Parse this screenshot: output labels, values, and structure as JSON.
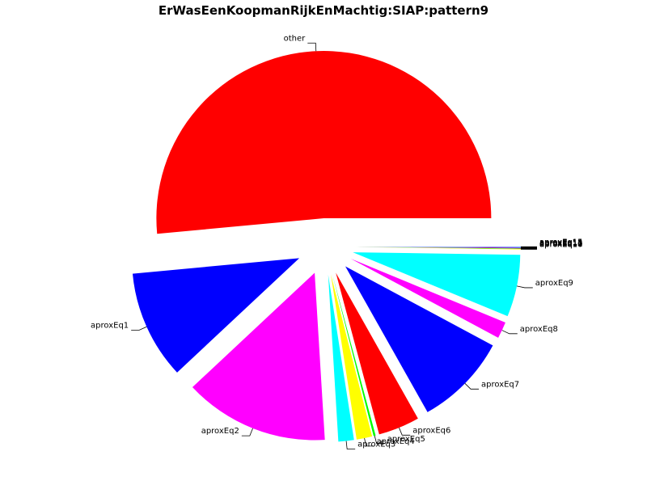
{
  "chart_data": {
    "type": "pie",
    "title": "ErWasEenKoopmanRijkEnMachtig:SIAP:pattern9",
    "start_angle_deg": 0,
    "direction": "counterclockwise",
    "exploded": true,
    "slices": [
      {
        "label": "other",
        "value": 51.5,
        "color": "#ff0000"
      },
      {
        "label": "aproxEq1",
        "value": 10.5,
        "color": "#0000ff"
      },
      {
        "label": "aproxEq2",
        "value": 14.0,
        "color": "#ff00ff"
      },
      {
        "label": "aproxEq3",
        "value": 1.5,
        "color": "#00ffff"
      },
      {
        "label": "aproxEq4",
        "value": 1.5,
        "color": "#ffff00"
      },
      {
        "label": "aproxEq5",
        "value": 0.2,
        "color": "#00ff00"
      },
      {
        "label": "aproxEq6",
        "value": 4.0,
        "color": "#ff0000"
      },
      {
        "label": "aproxEq7",
        "value": 9.0,
        "color": "#0000ff"
      },
      {
        "label": "aproxEq8",
        "value": 1.6,
        "color": "#ff00ff"
      },
      {
        "label": "aproxEq9",
        "value": 6.0,
        "color": "#00ffff"
      },
      {
        "label": "aproxEq10",
        "value": 0.04,
        "color": "#ffff00"
      },
      {
        "label": "aproxEq11",
        "value": 0.04,
        "color": "#00ff00"
      },
      {
        "label": "aproxEq12",
        "value": 0.04,
        "color": "#ff0000"
      },
      {
        "label": "aproxEq13",
        "value": 0.04,
        "color": "#0000ff"
      },
      {
        "label": "aproxEq14",
        "value": 0.04,
        "color": "#ff00ff"
      },
      {
        "label": "aproxEq15",
        "value": 0.04,
        "color": "#00ffff"
      }
    ]
  }
}
